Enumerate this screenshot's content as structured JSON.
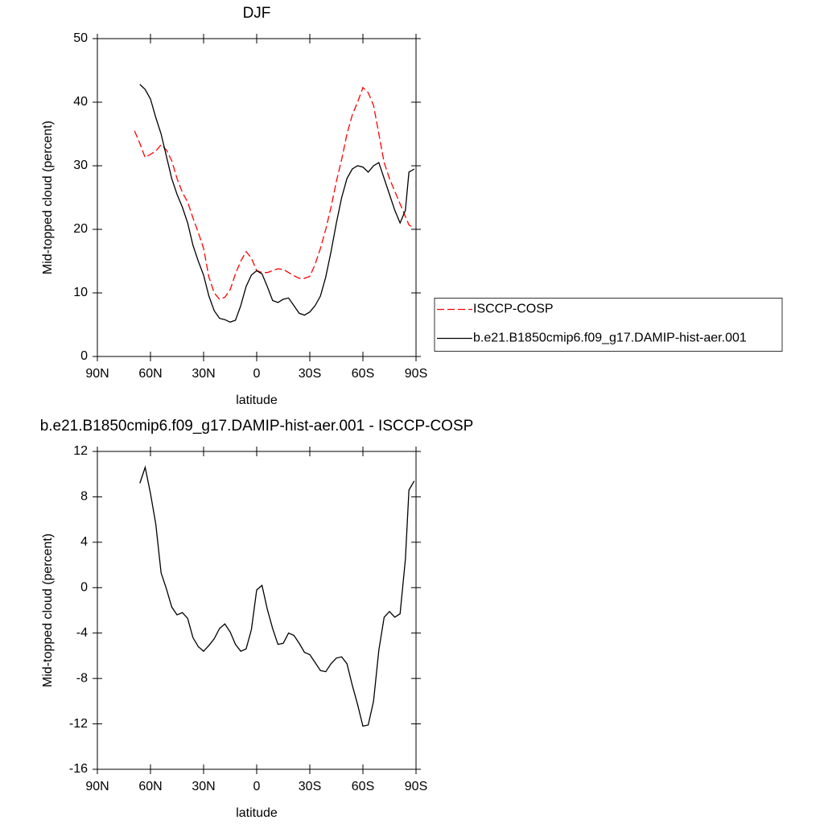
{
  "chart_data": [
    {
      "type": "line",
      "title": "DJF",
      "xlabel": "latitude",
      "ylabel": "Mid-topped cloud (percent)",
      "x": [
        69,
        66,
        63,
        60,
        57,
        54,
        51,
        48,
        45,
        42,
        39,
        36,
        33,
        30,
        27,
        24,
        21,
        18,
        15,
        12,
        9,
        6,
        3,
        0,
        -3,
        -6,
        -9,
        -12,
        -15,
        -18,
        -21,
        -24,
        -27,
        -30,
        -33,
        -36,
        -39,
        -42,
        -45,
        -48,
        -51,
        -54,
        -57,
        -60,
        -63,
        -66,
        -69,
        -72,
        -75,
        -78,
        -81,
        -84,
        -86,
        -89
      ],
      "series": [
        {
          "name": "ISCCP-COSP",
          "color": "#ff0000",
          "dashed": true,
          "values": [
            35.5,
            33.5,
            31.3,
            31.8,
            32.3,
            33.3,
            32.5,
            30.8,
            28,
            25.8,
            24.3,
            21.8,
            19.5,
            17,
            12.5,
            10,
            9,
            9.3,
            10.5,
            13,
            15,
            16.5,
            15.5,
            13.5,
            13.2,
            13.2,
            13.5,
            13.8,
            13.7,
            13.2,
            12.7,
            12.3,
            12.3,
            12.6,
            14.5,
            17,
            20,
            23.5,
            27.5,
            31,
            35,
            38,
            40,
            42.3,
            41.5,
            39.5,
            35,
            30.5,
            28,
            26,
            24,
            22,
            20.7,
            20.2
          ]
        },
        {
          "name": "b.e21.B1850cmip6.f09_g17.DAMIP-hist-aer.001",
          "color": "#000000",
          "dashed": false,
          "values": [
            null,
            42.8,
            42,
            40.5,
            37.6,
            35,
            31.5,
            28,
            25.5,
            23.5,
            21,
            17.5,
            15,
            12.8,
            9.5,
            7.2,
            6,
            5.8,
            5.4,
            5.7,
            8,
            11,
            12.8,
            13.5,
            13,
            11,
            8.8,
            8.5,
            9,
            9.2,
            8,
            6.8,
            6.5,
            7,
            8,
            9.5,
            12.5,
            16.5,
            21,
            25,
            28,
            29.5,
            30,
            29.8,
            29,
            30,
            30.5,
            28,
            25.5,
            23,
            21,
            23,
            29,
            29.5
          ]
        }
      ],
      "xlim": [
        90,
        -90
      ],
      "xticks": [
        {
          "value": 90,
          "label": "90N"
        },
        {
          "value": 60,
          "label": "60N"
        },
        {
          "value": 30,
          "label": "30N"
        },
        0,
        {
          "value": -30,
          "label": "30S"
        },
        {
          "value": -60,
          "label": "60S"
        },
        {
          "value": -90,
          "label": "90S"
        }
      ],
      "ylim": [
        0,
        50
      ],
      "yticks": [
        0,
        10,
        20,
        30,
        40,
        50
      ],
      "legend": "right"
    },
    {
      "type": "line",
      "title": "b.e21.B1850cmip6.f09_g17.DAMIP-hist-aer.001 - ISCCP-COSP",
      "xlabel": "latitude",
      "ylabel": "Mid-topped cloud (percent)",
      "x": [
        66,
        63,
        60,
        57,
        54,
        51,
        48,
        45,
        42,
        39,
        36,
        33,
        30,
        27,
        24,
        21,
        18,
        15,
        12,
        9,
        6,
        3,
        0,
        -3,
        -6,
        -9,
        -12,
        -15,
        -18,
        -21,
        -24,
        -27,
        -30,
        -33,
        -36,
        -39,
        -42,
        -45,
        -48,
        -51,
        -54,
        -57,
        -60,
        -63,
        -66,
        -69,
        -72,
        -75,
        -78,
        -81,
        -84,
        -86,
        -89
      ],
      "series": [
        {
          "color": "#000000",
          "dashed": false,
          "values": [
            9.2,
            10.6,
            8.3,
            5.6,
            1.3,
            -0.1,
            -1.7,
            -2.4,
            -2.2,
            -2.7,
            -4.4,
            -5.2,
            -5.6,
            -5.1,
            -4.5,
            -3.6,
            -3.2,
            -3.9,
            -5,
            -5.6,
            -5.4,
            -3.7,
            -0.2,
            0.2,
            -1.9,
            -3.6,
            -5,
            -4.9,
            -4,
            -4.2,
            -4.9,
            -5.7,
            -5.9,
            -6.6,
            -7.3,
            -7.4,
            -6.7,
            -6.2,
            -6.1,
            -6.7,
            -8.6,
            -10.3,
            -12.2,
            -12.1,
            -10,
            -5.5,
            -2.6,
            -2.1,
            -2.6,
            -2.3,
            2.5,
            8.6,
            9.4
          ]
        }
      ],
      "xlim": [
        90,
        -90
      ],
      "xticks": [
        {
          "value": 90,
          "label": "90N"
        },
        {
          "value": 60,
          "label": "60N"
        },
        {
          "value": 30,
          "label": "30N"
        },
        0,
        {
          "value": -30,
          "label": "30S"
        },
        {
          "value": -60,
          "label": "60S"
        },
        {
          "value": -90,
          "label": "90S"
        }
      ],
      "ylim": [
        -16,
        12
      ],
      "yticks": [
        -16,
        -12,
        -8,
        -4,
        0,
        4,
        8,
        12
      ]
    }
  ]
}
